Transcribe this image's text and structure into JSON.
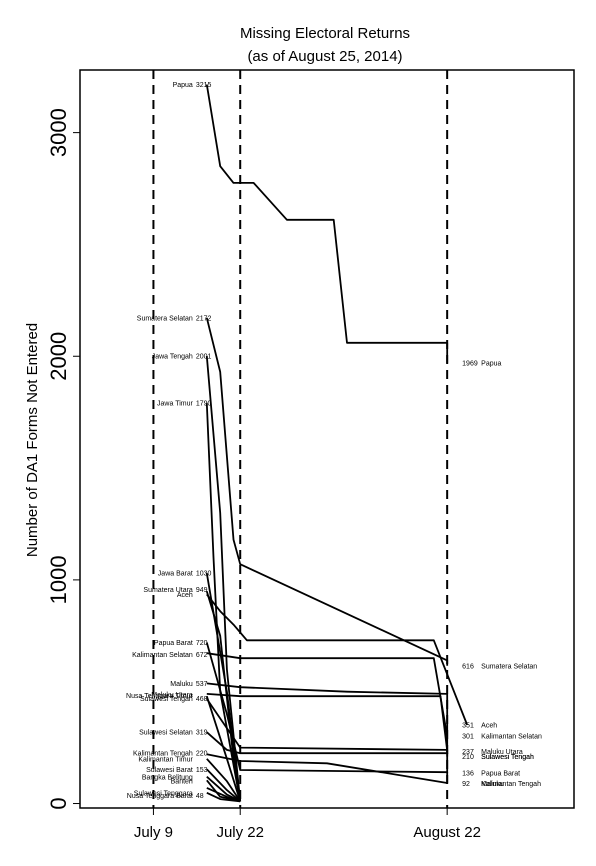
{
  "chart_data": {
    "type": "line",
    "title": "Missing Electoral Returns",
    "subtitle": "(as of August 25, 2014)",
    "ylabel": "Number of DA1 Forms Not Entered",
    "xlabel": "",
    "ylim": [
      -20,
      3280
    ],
    "xlim": [
      "2014-06-28",
      "2014-09-10"
    ],
    "x_ticks": [
      {
        "date": "2014-07-09",
        "label": "July 9"
      },
      {
        "date": "2014-07-22",
        "label": "July 22"
      },
      {
        "date": "2014-08-22",
        "label": "August 22"
      }
    ],
    "y_ticks": [
      0,
      1000,
      2000,
      3000
    ],
    "reference_lines": [
      "2014-07-09",
      "2014-07-22",
      "2014-08-22"
    ],
    "grid": false,
    "series": [
      {
        "name": "Papua",
        "start_label": "3215",
        "end_label": "1969",
        "x": [
          "2014-07-17",
          "2014-07-19",
          "2014-07-21",
          "2014-07-24",
          "2014-07-29",
          "2014-08-05",
          "2014-08-07",
          "2014-08-22",
          "2014-08-22"
        ],
        "y": [
          3215,
          2850,
          2775,
          2775,
          2610,
          2610,
          2060,
          2060,
          1969
        ]
      },
      {
        "name": "Sumatera Selatan",
        "start_label": "2172",
        "end_label": "616",
        "x": [
          "2014-07-17",
          "2014-07-19",
          "2014-07-21",
          "2014-07-22",
          "2014-08-22",
          "2014-08-22"
        ],
        "y": [
          2172,
          1930,
          1180,
          1070,
          640,
          616
        ]
      },
      {
        "name": "Jawa Tengah",
        "start_label": "2001",
        "x": [
          "2014-07-17",
          "2014-07-19",
          "2014-07-20",
          "2014-07-22"
        ],
        "y": [
          2001,
          1300,
          600,
          10
        ]
      },
      {
        "name": "Jawa Timur",
        "start_label": "1790",
        "x": [
          "2014-07-17",
          "2014-07-18",
          "2014-07-19",
          "2014-07-22"
        ],
        "y": [
          1790,
          1100,
          500,
          10
        ]
      },
      {
        "name": "Jawa Barat",
        "start_label": "1030",
        "x": [
          "2014-07-17",
          "2014-07-20",
          "2014-07-22"
        ],
        "y": [
          1030,
          500,
          10
        ]
      },
      {
        "name": "Sumatera Utara",
        "start_label": "949",
        "x": [
          "2014-07-17",
          "2014-07-19",
          "2014-07-21",
          "2014-07-22"
        ],
        "y": [
          949,
          750,
          200,
          10
        ]
      },
      {
        "name": "Aceh",
        "start_label": "935",
        "end_label": "351",
        "x": [
          "2014-07-17",
          "2014-07-19",
          "2014-07-21",
          "2014-07-23",
          "2014-08-20",
          "2014-08-25"
        ],
        "y": [
          935,
          860,
          800,
          730,
          730,
          351
        ]
      },
      {
        "name": "Papua Barat",
        "start_label": "720",
        "end_label": "136",
        "x": [
          "2014-07-17",
          "2014-07-20",
          "2014-07-22",
          "2014-08-22",
          "2014-08-22"
        ],
        "y": [
          720,
          400,
          150,
          140,
          136
        ]
      },
      {
        "name": "Kalimantan Selatan",
        "start_label": "672",
        "end_label": "301",
        "x": [
          "2014-07-17",
          "2014-07-22",
          "2014-08-20",
          "2014-08-22"
        ],
        "y": [
          672,
          650,
          650,
          301
        ]
      },
      {
        "name": "Maluku",
        "start_label": "537",
        "end_label": "92",
        "x": [
          "2014-07-17",
          "2014-07-22",
          "2014-08-07",
          "2014-08-22",
          "2014-08-22"
        ],
        "y": [
          537,
          520,
          500,
          490,
          92
        ]
      },
      {
        "name": "Maluku Utara",
        "start_label": "490",
        "end_label": "237",
        "x": [
          "2014-07-17",
          "2014-07-22",
          "2014-08-21",
          "2014-08-22"
        ],
        "y": [
          490,
          480,
          480,
          237
        ]
      },
      {
        "name": "Nusa Tenggara Timur",
        "start_label": "480",
        "x": [
          "2014-07-17",
          "2014-07-20",
          "2014-07-22"
        ],
        "y": [
          480,
          200,
          10
        ]
      },
      {
        "name": "Sulawesi Tengah",
        "start_label": "468",
        "end_label": "210",
        "x": [
          "2014-07-17",
          "2014-07-22",
          "2014-08-22",
          "2014-08-22"
        ],
        "y": [
          468,
          250,
          240,
          210
        ]
      },
      {
        "name": "Sulawesi Selatan",
        "start_label": "319",
        "end_label": "220",
        "x": [
          "2014-07-17",
          "2014-07-20",
          "2014-07-22",
          "2014-08-22",
          "2014-08-22"
        ],
        "y": [
          319,
          240,
          225,
          225,
          220
        ]
      },
      {
        "name": "Kalimantan Tengah",
        "start_label": "220",
        "end_label": "92",
        "x": [
          "2014-07-17",
          "2014-07-22",
          "2014-08-04",
          "2014-08-22",
          "2014-08-22"
        ],
        "y": [
          220,
          190,
          180,
          92,
          92
        ]
      },
      {
        "name": "Kalimantan Timur",
        "start_label": "200",
        "x": [
          "2014-07-17",
          "2014-07-20",
          "2014-07-22"
        ],
        "y": [
          200,
          100,
          10
        ]
      },
      {
        "name": "Sulawesi Barat",
        "start_label": "153",
        "x": [
          "2014-07-17",
          "2014-07-20",
          "2014-07-22"
        ],
        "y": [
          153,
          60,
          10
        ]
      },
      {
        "name": "Bangka Belitung",
        "start_label": "120",
        "x": [
          "2014-07-17",
          "2014-07-20",
          "2014-07-22"
        ],
        "y": [
          120,
          40,
          10
        ]
      },
      {
        "name": "Banten",
        "start_label": "104",
        "x": [
          "2014-07-17",
          "2014-07-19",
          "2014-07-22"
        ],
        "y": [
          104,
          30,
          10
        ]
      },
      {
        "name": "Sulawesi Tenggara",
        "start_label": "70",
        "x": [
          "2014-07-17",
          "2014-07-20",
          "2014-07-22"
        ],
        "y": [
          70,
          30,
          10
        ]
      },
      {
        "name": "Nusa Tenggara Barat",
        "start_label": "48",
        "x": [
          "2014-07-17",
          "2014-07-19",
          "2014-07-22"
        ],
        "y": [
          48,
          20,
          10
        ]
      }
    ],
    "visible_left_labels": [
      {
        "text": "Papua",
        "value": "3215",
        "y": 3215
      },
      {
        "text": "Sumatera Selatan",
        "value": "2172",
        "y": 2172
      },
      {
        "text": "Jawa Tengah",
        "value": "2001",
        "y": 2001
      },
      {
        "text": "Jawa Timur",
        "value": "1790",
        "y": 1790
      },
      {
        "text": "Jawa Barat",
        "value": "1030",
        "y": 1030
      },
      {
        "text": "Sumatera Utara",
        "value": "949",
        "y": 958
      },
      {
        "text": "Aceh",
        "value": "",
        "y": 935
      },
      {
        "text": "Papua Barat",
        "value": "720",
        "y": 720
      },
      {
        "text": "Kalimantan Selatan",
        "value": "672",
        "y": 667
      },
      {
        "text": "Maluku",
        "value": "537",
        "y": 537
      },
      {
        "text": "Nusa Tenggara Timur",
        "value": "",
        "y": 482
      },
      {
        "text": "Maluku Utara",
        "value": "",
        "y": 487
      },
      {
        "text": "Sulawesi Tengah",
        "value": "468",
        "y": 470
      },
      {
        "text": "Sulawesi Selatan",
        "value": "319",
        "y": 319
      },
      {
        "text": "Kalimantan Tengah",
        "value": "220",
        "y": 226
      },
      {
        "text": "Kalimantan Timur",
        "value": "",
        "y": 200
      },
      {
        "text": "Sulawesi Barat",
        "value": "153",
        "y": 152
      },
      {
        "text": "Bangka Belitung",
        "value": "",
        "y": 118
      },
      {
        "text": "Banten",
        "value": "",
        "y": 100
      },
      {
        "text": "Sulawesi Tenggara",
        "value": "",
        "y": 48
      },
      {
        "text": "Nusa Tenggara Barat",
        "value": "48",
        "y": 36
      }
    ],
    "visible_right_labels": [
      {
        "text": "Papua",
        "value": "1969",
        "y": 1969
      },
      {
        "text": "Sumatera Selatan",
        "value": "616",
        "y": 616
      },
      {
        "text": "Aceh",
        "value": "351",
        "y": 351
      },
      {
        "text": "Kalimantan Selatan",
        "value": "301",
        "y": 301
      },
      {
        "text": "Maluku Utara",
        "value": "237",
        "y": 232
      },
      {
        "text": "Sulawesi Tengah",
        "value": "210",
        "y": 210
      },
      {
        "text": "Sulawesi Tengah",
        "value": "",
        "y": 210
      },
      {
        "text": "Papua Barat",
        "value": "136",
        "y": 136
      },
      {
        "text": "Maluku",
        "value": "92",
        "y": 90
      },
      {
        "text": "Kalimantan Tengah",
        "value": "",
        "y": 90
      }
    ]
  }
}
